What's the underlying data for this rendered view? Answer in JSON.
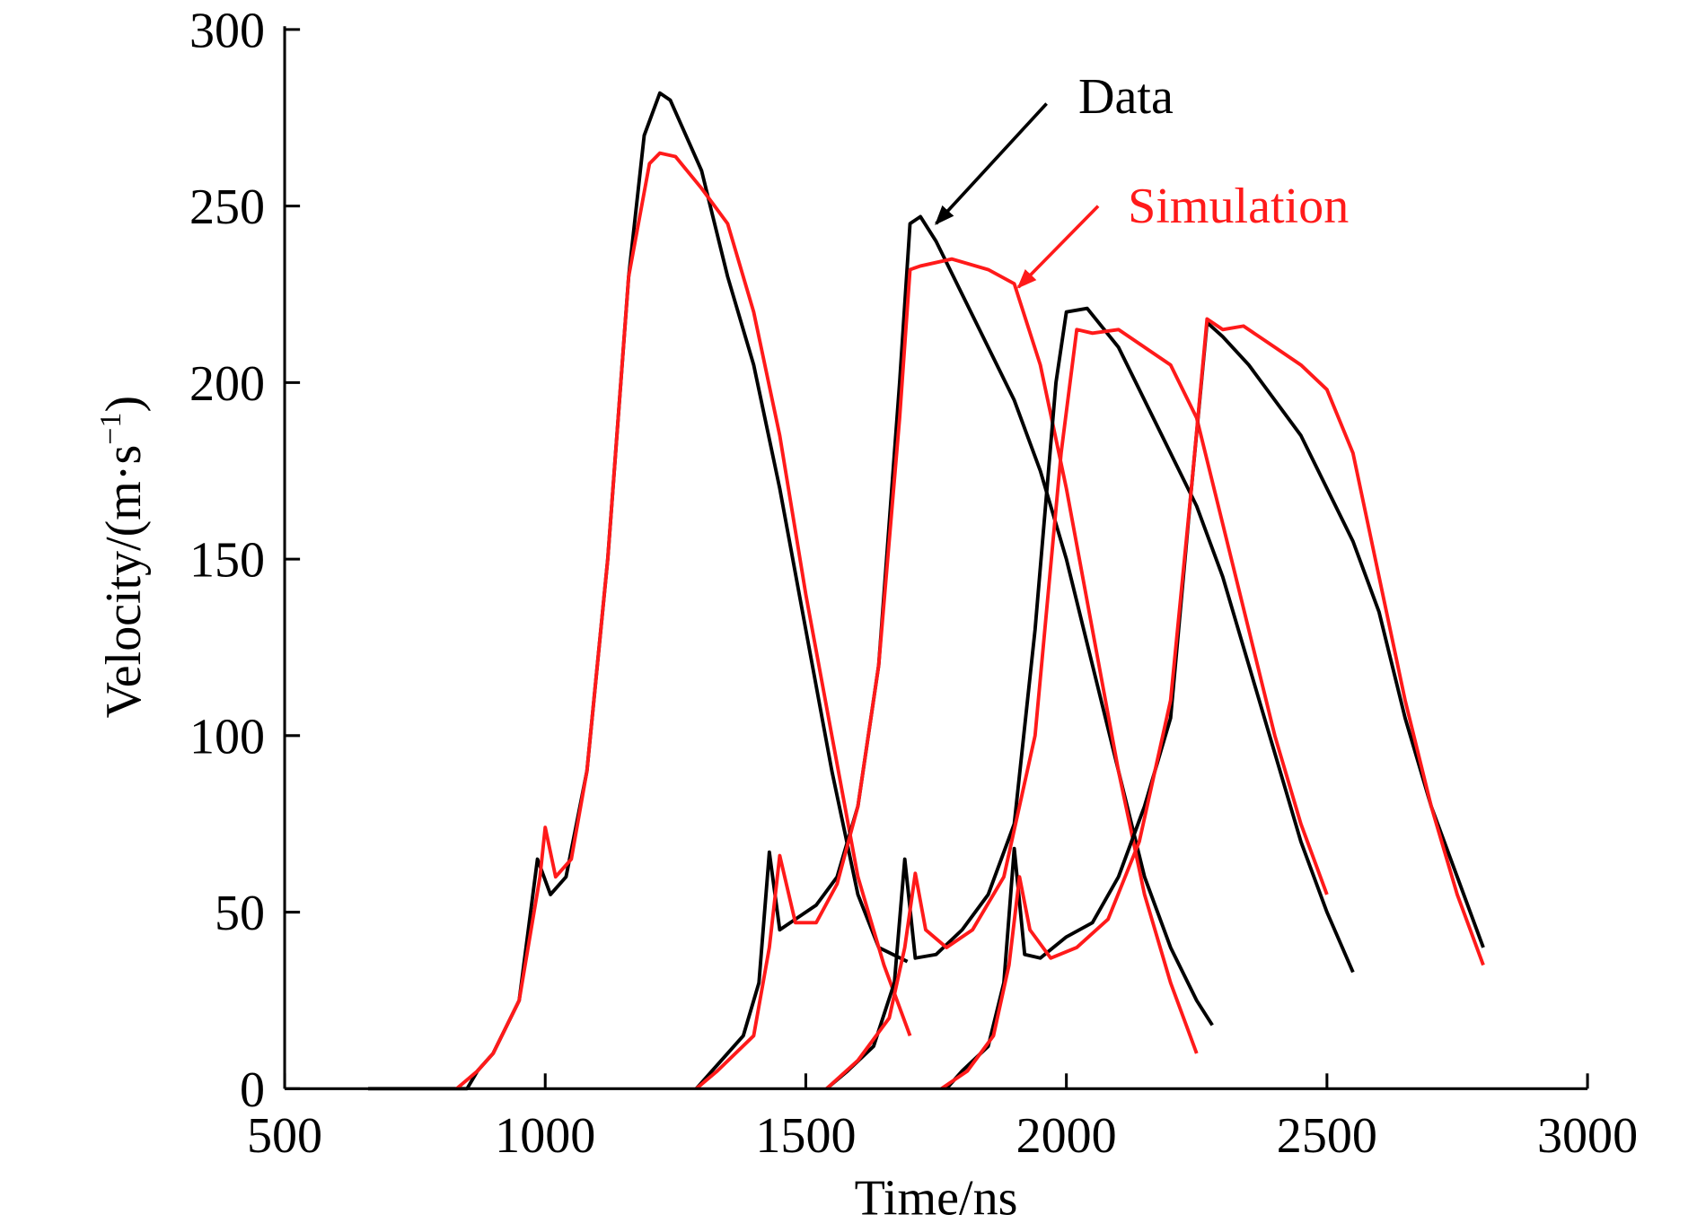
{
  "chart_data": {
    "type": "line",
    "xlabel": "Time/ns",
    "ylabel": "Velocity/(m·s",
    "ylabel_sup": "−1",
    "ylabel_close": ")",
    "xlim": [
      500,
      3000
    ],
    "ylim": [
      0,
      300
    ],
    "xticks": [
      500,
      1000,
      1500,
      2000,
      2500,
      3000
    ],
    "yticks": [
      0,
      50,
      100,
      150,
      200,
      250,
      300
    ],
    "grid": false,
    "colors": {
      "Data": "#000000",
      "Simulation": "#ff1a1a"
    },
    "annotations": [
      {
        "text": "Data",
        "color": "#000000",
        "text_at": [
          2023,
          281
        ],
        "arrow_from": [
          1962,
          279
        ],
        "arrow_to": [
          1750,
          245
        ]
      },
      {
        "text": "Simulation",
        "color": "#ff1a1a",
        "text_at": [
          2118,
          250
        ],
        "arrow_from": [
          2061,
          250
        ],
        "arrow_to": [
          1908,
          227
        ]
      }
    ],
    "series": [
      {
        "group": "Data",
        "points": [
          [
            660,
            0
          ],
          [
            850,
            0
          ],
          [
            870,
            5
          ],
          [
            900,
            10
          ],
          [
            950,
            25
          ],
          [
            985,
            65
          ],
          [
            1010,
            55
          ],
          [
            1040,
            60
          ],
          [
            1080,
            90
          ],
          [
            1120,
            150
          ],
          [
            1160,
            230
          ],
          [
            1190,
            270
          ],
          [
            1220,
            282
          ],
          [
            1240,
            280
          ],
          [
            1300,
            260
          ],
          [
            1350,
            230
          ],
          [
            1400,
            205
          ],
          [
            1450,
            170
          ],
          [
            1500,
            130
          ],
          [
            1550,
            90
          ],
          [
            1600,
            55
          ],
          [
            1640,
            40
          ],
          [
            1695,
            36
          ]
        ]
      },
      {
        "group": "Simulation",
        "points": [
          [
            830,
            0
          ],
          [
            870,
            5
          ],
          [
            900,
            10
          ],
          [
            950,
            25
          ],
          [
            990,
            60
          ],
          [
            1000,
            74
          ],
          [
            1020,
            60
          ],
          [
            1050,
            65
          ],
          [
            1080,
            90
          ],
          [
            1120,
            150
          ],
          [
            1160,
            230
          ],
          [
            1200,
            262
          ],
          [
            1220,
            265
          ],
          [
            1250,
            264
          ],
          [
            1300,
            255
          ],
          [
            1350,
            245
          ],
          [
            1400,
            220
          ],
          [
            1450,
            185
          ],
          [
            1500,
            140
          ],
          [
            1550,
            100
          ],
          [
            1600,
            60
          ],
          [
            1650,
            35
          ],
          [
            1700,
            15
          ]
        ]
      },
      {
        "group": "Data",
        "points": [
          [
            1290,
            0
          ],
          [
            1320,
            5
          ],
          [
            1380,
            15
          ],
          [
            1410,
            30
          ],
          [
            1430,
            67
          ],
          [
            1450,
            45
          ],
          [
            1480,
            48
          ],
          [
            1520,
            52
          ],
          [
            1560,
            60
          ],
          [
            1600,
            80
          ],
          [
            1640,
            120
          ],
          [
            1680,
            200
          ],
          [
            1700,
            245
          ],
          [
            1720,
            247
          ],
          [
            1750,
            240
          ],
          [
            1800,
            225
          ],
          [
            1850,
            210
          ],
          [
            1900,
            195
          ],
          [
            1950,
            175
          ],
          [
            2000,
            150
          ],
          [
            2050,
            120
          ],
          [
            2100,
            90
          ],
          [
            2150,
            60
          ],
          [
            2200,
            40
          ],
          [
            2250,
            25
          ],
          [
            2280,
            18
          ]
        ]
      },
      {
        "group": "Simulation",
        "points": [
          [
            1290,
            0
          ],
          [
            1330,
            5
          ],
          [
            1400,
            15
          ],
          [
            1430,
            40
          ],
          [
            1450,
            66
          ],
          [
            1480,
            47
          ],
          [
            1520,
            47
          ],
          [
            1560,
            58
          ],
          [
            1600,
            80
          ],
          [
            1640,
            120
          ],
          [
            1680,
            190
          ],
          [
            1700,
            232
          ],
          [
            1720,
            233
          ],
          [
            1780,
            235
          ],
          [
            1850,
            232
          ],
          [
            1900,
            228
          ],
          [
            1950,
            205
          ],
          [
            2000,
            170
          ],
          [
            2050,
            130
          ],
          [
            2100,
            90
          ],
          [
            2150,
            55
          ],
          [
            2200,
            30
          ],
          [
            2250,
            10
          ]
        ]
      },
      {
        "group": "Data",
        "points": [
          [
            1540,
            0
          ],
          [
            1580,
            5
          ],
          [
            1630,
            12
          ],
          [
            1670,
            30
          ],
          [
            1690,
            65
          ],
          [
            1710,
            37
          ],
          [
            1750,
            38
          ],
          [
            1800,
            45
          ],
          [
            1850,
            55
          ],
          [
            1900,
            75
          ],
          [
            1940,
            130
          ],
          [
            1980,
            200
          ],
          [
            2000,
            220
          ],
          [
            2040,
            221
          ],
          [
            2100,
            210
          ],
          [
            2150,
            195
          ],
          [
            2200,
            180
          ],
          [
            2250,
            165
          ],
          [
            2300,
            145
          ],
          [
            2350,
            120
          ],
          [
            2400,
            95
          ],
          [
            2450,
            70
          ],
          [
            2500,
            50
          ],
          [
            2550,
            33
          ]
        ]
      },
      {
        "group": "Simulation",
        "points": [
          [
            1540,
            0
          ],
          [
            1600,
            8
          ],
          [
            1660,
            20
          ],
          [
            1690,
            40
          ],
          [
            1710,
            61
          ],
          [
            1730,
            45
          ],
          [
            1770,
            40
          ],
          [
            1820,
            45
          ],
          [
            1880,
            60
          ],
          [
            1940,
            100
          ],
          [
            1990,
            180
          ],
          [
            2020,
            215
          ],
          [
            2050,
            214
          ],
          [
            2100,
            215
          ],
          [
            2150,
            210
          ],
          [
            2200,
            205
          ],
          [
            2250,
            190
          ],
          [
            2300,
            160
          ],
          [
            2350,
            130
          ],
          [
            2400,
            100
          ],
          [
            2450,
            75
          ],
          [
            2500,
            55
          ]
        ]
      },
      {
        "group": "Data",
        "points": [
          [
            1770,
            0
          ],
          [
            1800,
            5
          ],
          [
            1850,
            12
          ],
          [
            1880,
            30
          ],
          [
            1900,
            68
          ],
          [
            1920,
            38
          ],
          [
            1950,
            37
          ],
          [
            2000,
            43
          ],
          [
            2050,
            47
          ],
          [
            2100,
            60
          ],
          [
            2150,
            80
          ],
          [
            2200,
            105
          ],
          [
            2240,
            170
          ],
          [
            2270,
            217
          ],
          [
            2300,
            213
          ],
          [
            2350,
            205
          ],
          [
            2400,
            195
          ],
          [
            2450,
            185
          ],
          [
            2500,
            170
          ],
          [
            2550,
            155
          ],
          [
            2600,
            135
          ],
          [
            2650,
            105
          ],
          [
            2700,
            80
          ],
          [
            2750,
            60
          ],
          [
            2800,
            40
          ]
        ]
      },
      {
        "group": "Simulation",
        "points": [
          [
            1760,
            0
          ],
          [
            1810,
            5
          ],
          [
            1860,
            15
          ],
          [
            1890,
            35
          ],
          [
            1910,
            60
          ],
          [
            1930,
            45
          ],
          [
            1970,
            37
          ],
          [
            2020,
            40
          ],
          [
            2080,
            48
          ],
          [
            2140,
            70
          ],
          [
            2200,
            110
          ],
          [
            2240,
            170
          ],
          [
            2270,
            218
          ],
          [
            2300,
            215
          ],
          [
            2340,
            216
          ],
          [
            2400,
            210
          ],
          [
            2450,
            205
          ],
          [
            2500,
            198
          ],
          [
            2550,
            180
          ],
          [
            2600,
            145
          ],
          [
            2650,
            110
          ],
          [
            2700,
            80
          ],
          [
            2750,
            55
          ],
          [
            2800,
            35
          ]
        ]
      }
    ]
  }
}
